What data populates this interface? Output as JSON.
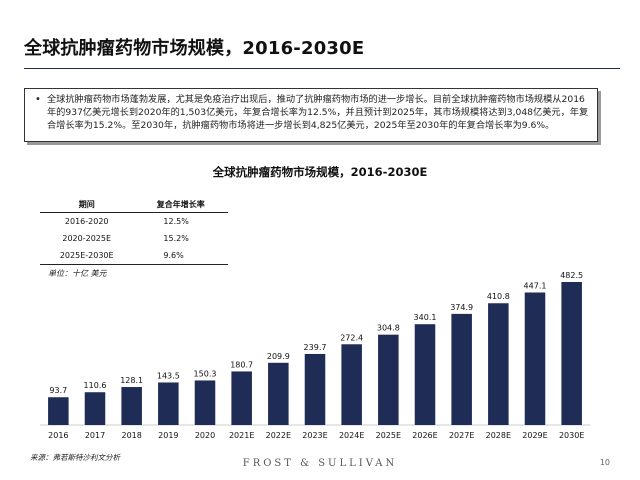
{
  "page": {
    "title": "全球抗肿瘤药物市场规模，2016-2030E",
    "summary": "全球抗肿瘤药物市场蓬勃发展，尤其是免疫治疗出现后，推动了抗肿瘤药物市场的进一步增长。目前全球抗肿瘤药物市场规模从2016年的937亿美元增长到2020年的1,503亿美元，年复合增长率为12.5%，并且预计到2025年，其市场规模将达到3,048亿美元，年复合增长率为15.2%。至2030年，抗肿瘤药物市场将进一步增长到4,825亿美元，2025年至2030年的年复合增长率为9.6%。",
    "source": "来源：弗若斯特沙利文分析",
    "brand": "FROST & SULLIVAN",
    "page_number": "10"
  },
  "cagr_table": {
    "headers": [
      "期间",
      "复合年增长率"
    ],
    "rows": [
      {
        "period": "2016-2020",
        "rate": "12.5%"
      },
      {
        "period": "2020-2025E",
        "rate": "15.2%"
      },
      {
        "period": "2025E-2030E",
        "rate": "9.6%"
      }
    ]
  },
  "chart_data": {
    "type": "bar",
    "title": "全球抗肿瘤药物市场规模，2016-2030E",
    "unit_label": "单位：十亿 美元",
    "categories": [
      "2016",
      "2017",
      "2018",
      "2019",
      "2020",
      "2021E",
      "2022E",
      "2023E",
      "2024E",
      "2025E",
      "2026E",
      "2027E",
      "2028E",
      "2029E",
      "2030E"
    ],
    "values": [
      93.7,
      110.6,
      128.1,
      143.5,
      150.3,
      180.7,
      209.9,
      239.7,
      272.4,
      304.8,
      340.1,
      374.9,
      410.8,
      447.1,
      482.5
    ],
    "value_labels": [
      "93.7",
      "110.6",
      "128.1",
      "143.5",
      "150.3",
      "180.7",
      "209.9",
      "239.7",
      "272.4",
      "304.8",
      "340.1",
      "374.9",
      "410.8",
      "447.1",
      "482.5"
    ],
    "bar_color": "#1f2d56",
    "grid": false
  }
}
